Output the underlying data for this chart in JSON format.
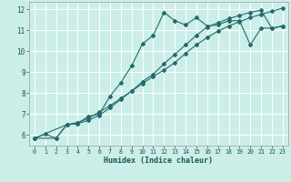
{
  "xlabel": "Humidex (Indice chaleur)",
  "bg_color": "#cceee8",
  "line_color": "#226b6b",
  "xlim": [
    -0.5,
    23.5
  ],
  "ylim": [
    5.5,
    12.35
  ],
  "xtick_labels": [
    "0",
    "1",
    "2",
    "3",
    "4",
    "5",
    "6",
    "7",
    "8",
    "9",
    "10",
    "11",
    "12",
    "13",
    "14",
    "15",
    "16",
    "17",
    "18",
    "19",
    "20",
    "21",
    "22",
    "23"
  ],
  "ytick_vals": [
    6,
    7,
    8,
    9,
    10,
    11,
    12
  ],
  "line1_x": [
    0,
    1,
    2,
    3,
    4,
    5,
    6,
    7,
    8,
    9,
    10,
    11,
    12,
    13,
    14,
    15,
    16,
    17,
    18,
    19,
    20,
    21,
    22,
    23
  ],
  "line1_y": [
    5.85,
    6.05,
    5.85,
    6.5,
    6.55,
    6.9,
    7.0,
    7.85,
    8.5,
    9.3,
    10.35,
    10.75,
    11.85,
    11.45,
    11.25,
    11.6,
    11.2,
    11.25,
    11.45,
    11.45,
    10.3,
    11.1,
    11.1,
    11.2
  ],
  "line2_x": [
    0,
    2,
    3,
    4,
    5,
    6,
    7,
    8,
    9,
    10,
    11,
    12,
    13,
    14,
    15,
    16,
    17,
    18,
    19,
    20,
    21,
    22,
    23
  ],
  "line2_y": [
    5.85,
    5.85,
    6.5,
    6.55,
    6.7,
    6.95,
    7.3,
    7.7,
    8.1,
    8.55,
    8.9,
    9.4,
    9.85,
    10.3,
    10.75,
    11.15,
    11.35,
    11.55,
    11.7,
    11.85,
    11.95,
    11.08,
    11.2
  ],
  "line3_x": [
    0,
    3,
    4,
    5,
    6,
    7,
    8,
    9,
    10,
    11,
    12,
    13,
    14,
    15,
    16,
    17,
    18,
    19,
    20,
    21,
    22,
    23
  ],
  "line3_y": [
    5.85,
    6.5,
    6.6,
    6.8,
    7.1,
    7.4,
    7.75,
    8.1,
    8.45,
    8.8,
    9.1,
    9.45,
    9.9,
    10.3,
    10.65,
    10.95,
    11.2,
    11.4,
    11.6,
    11.75,
    11.9,
    12.05
  ]
}
